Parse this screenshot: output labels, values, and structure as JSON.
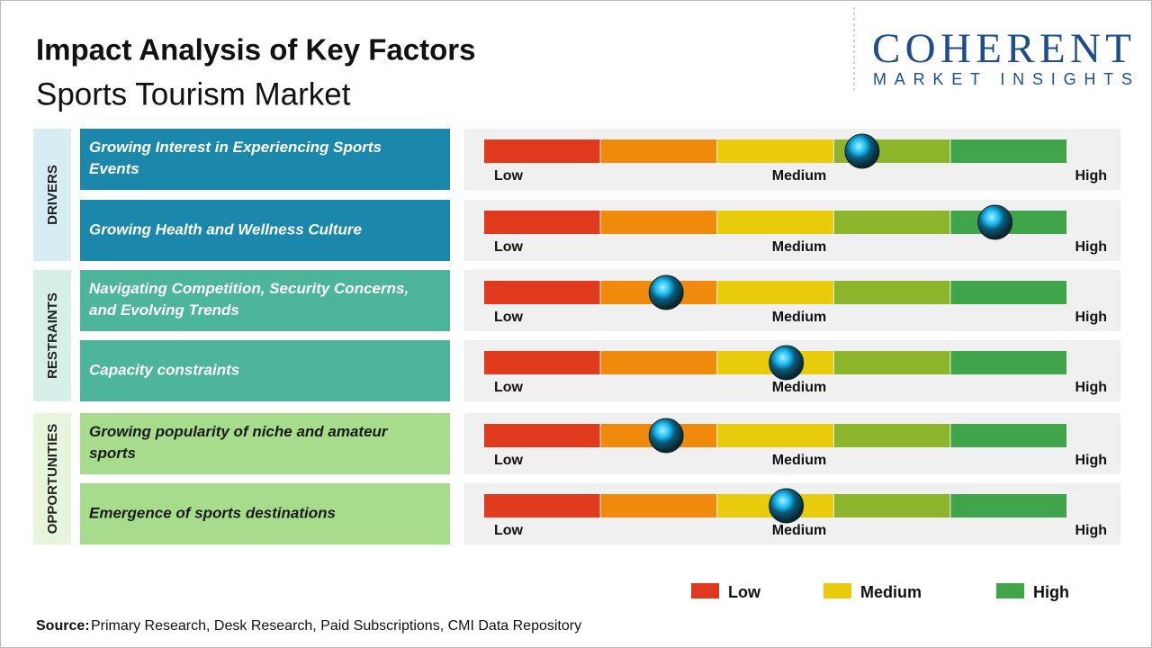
{
  "header": {
    "title": "Impact Analysis of Key Factors",
    "subtitle": "Sports Tourism Market"
  },
  "logo": {
    "name": "COHERENT",
    "tagline": "MARKET INSIGHTS"
  },
  "scale": {
    "colors": [
      "#e03a1e",
      "#ef8a0c",
      "#e8cc0c",
      "#8db52c",
      "#3fa44a"
    ],
    "labels": [
      "Low",
      "Medium",
      "High"
    ]
  },
  "groups": [
    {
      "label": "DRIVERS",
      "color": "#1a87ab",
      "band": "#d8ecf4",
      "text_color": "#ffffff",
      "factors": [
        {
          "label": "Growing Interest in Experiencing Sports Events",
          "impact": 3.24
        },
        {
          "label": "Growing Health and Wellness Culture",
          "impact": 4.38
        }
      ]
    },
    {
      "label": "RESTRAINTS",
      "color": "#4db59a",
      "band": "#d6efe8",
      "text_color": "#ffffff",
      "factors": [
        {
          "label": "Navigating Competition, Security Concerns, and Evolving Trends",
          "impact": 1.56
        },
        {
          "label": "Capacity constraints",
          "impact": 2.59
        }
      ]
    },
    {
      "label": "OPPORTUNITIES",
      "color": "#a6dc8c",
      "band": "#e6f5dc",
      "text_color": "#1a1a1a",
      "factors": [
        {
          "label": "Growing popularity of niche and amateur sports",
          "impact": 1.56
        },
        {
          "label": "Emergence of sports destinations",
          "impact": 2.59
        }
      ]
    }
  ],
  "legend": [
    {
      "label": "Low",
      "color": "#e03a1e"
    },
    {
      "label": "Medium",
      "color": "#e8cc0c"
    },
    {
      "label": "High",
      "color": "#3fa44a"
    }
  ],
  "source": {
    "label": "Source:",
    "text": "Primary Research, Desk Research, Paid Subscriptions, CMI Data Repository"
  }
}
